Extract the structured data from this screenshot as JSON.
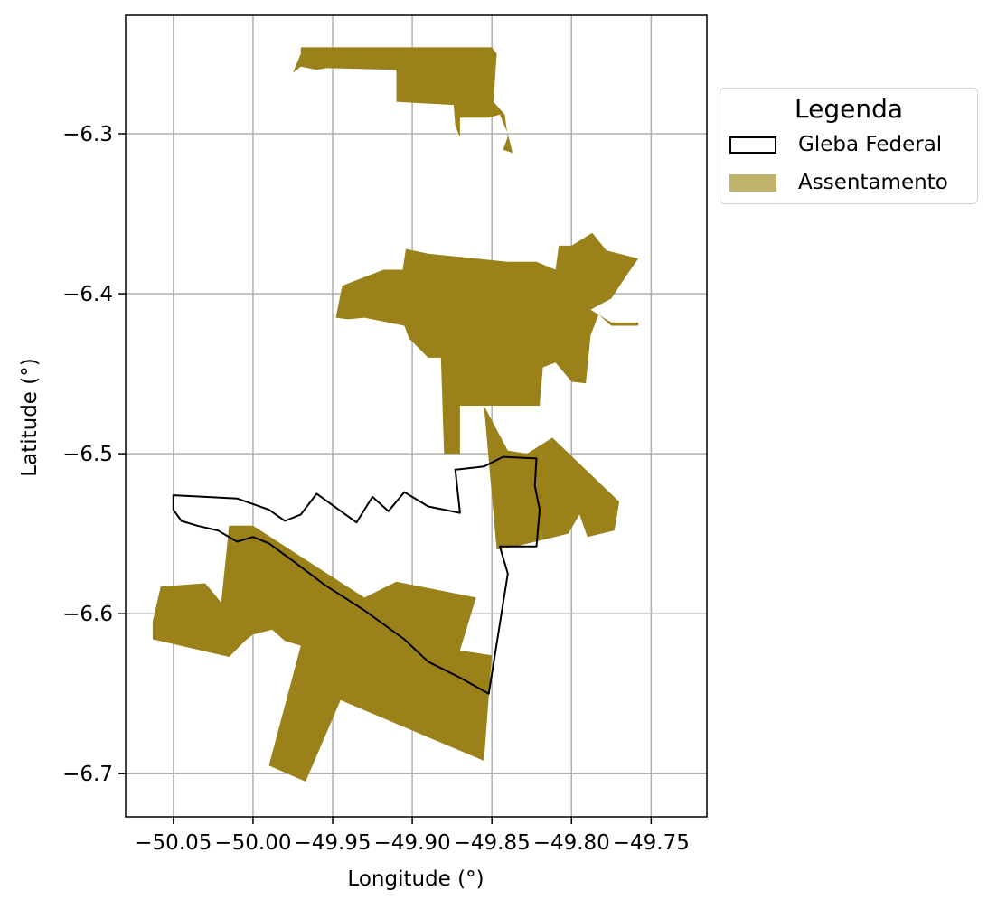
{
  "chart_data": {
    "type": "map",
    "xlabel": "Longitude (°)",
    "ylabel": "Latitude (°)",
    "xlim": [
      -50.08,
      -49.715
    ],
    "ylim": [
      -6.727,
      -6.226
    ],
    "x_ticks": [
      -50.05,
      -50.0,
      -49.95,
      -49.9,
      -49.85,
      -49.8,
      -49.75
    ],
    "x_tick_labels": [
      "−50.05",
      "−50.00",
      "−49.95",
      "−49.90",
      "−49.85",
      "−49.80",
      "−49.75"
    ],
    "y_ticks": [
      -6.3,
      -6.4,
      -6.5,
      -6.6,
      -6.7
    ],
    "y_tick_labels": [
      "−6.3",
      "−6.4",
      "−6.5",
      "−6.6",
      "−6.7"
    ],
    "grid": true,
    "legend": {
      "title": "Legenda",
      "placement": "outside-right-top",
      "entries": [
        {
          "label": "Gleba Federal",
          "style": "outline",
          "color": "#000000"
        },
        {
          "label": "Assentamento",
          "style": "fill",
          "color": "#9a8119"
        }
      ]
    },
    "colors": {
      "assentamento": "#9a8119",
      "gleba": "#000000",
      "grid": "#b0b0b0"
    },
    "assentamento_polygons": [
      [
        [
          -49.97,
          -6.246
        ],
        [
          -49.85,
          -6.246
        ],
        [
          -49.847,
          -6.25
        ],
        [
          -49.849,
          -6.28
        ],
        [
          -49.842,
          -6.288
        ],
        [
          -49.84,
          -6.302
        ],
        [
          -49.843,
          -6.31
        ],
        [
          -49.837,
          -6.312
        ],
        [
          -49.84,
          -6.3
        ],
        [
          -49.845,
          -6.288
        ],
        [
          -49.852,
          -6.29
        ],
        [
          -49.87,
          -6.29
        ],
        [
          -49.87,
          -6.302
        ],
        [
          -49.873,
          -6.295
        ],
        [
          -49.874,
          -6.282
        ],
        [
          -49.91,
          -6.28
        ],
        [
          -49.91,
          -6.26
        ],
        [
          -49.954,
          -6.259
        ],
        [
          -49.96,
          -6.26
        ],
        [
          -49.97,
          -6.258
        ],
        [
          -49.975,
          -6.262
        ],
        [
          -49.97,
          -6.25
        ]
      ],
      [
        [
          -49.918,
          -6.385
        ],
        [
          -49.906,
          -6.385
        ],
        [
          -49.904,
          -6.372
        ],
        [
          -49.89,
          -6.375
        ],
        [
          -49.84,
          -6.38
        ],
        [
          -49.822,
          -6.38
        ],
        [
          -49.81,
          -6.385
        ],
        [
          -49.808,
          -6.37
        ],
        [
          -49.8,
          -6.37
        ],
        [
          -49.787,
          -6.362
        ],
        [
          -49.778,
          -6.373
        ],
        [
          -49.766,
          -6.376
        ],
        [
          -49.758,
          -6.378
        ],
        [
          -49.765,
          -6.388
        ],
        [
          -49.775,
          -6.403
        ],
        [
          -49.788,
          -6.41
        ],
        [
          -49.775,
          -6.418
        ],
        [
          -49.758,
          -6.418
        ],
        [
          -49.758,
          -6.42
        ],
        [
          -49.775,
          -6.42
        ],
        [
          -49.783,
          -6.413
        ],
        [
          -49.788,
          -6.426
        ],
        [
          -49.791,
          -6.456
        ],
        [
          -49.8,
          -6.455
        ],
        [
          -49.81,
          -6.443
        ],
        [
          -49.818,
          -6.446
        ],
        [
          -49.82,
          -6.47
        ],
        [
          -49.845,
          -6.47
        ],
        [
          -49.87,
          -6.47
        ],
        [
          -49.87,
          -6.5
        ],
        [
          -49.88,
          -6.5
        ],
        [
          -49.882,
          -6.44
        ],
        [
          -49.89,
          -6.44
        ],
        [
          -49.902,
          -6.428
        ],
        [
          -49.905,
          -6.42
        ],
        [
          -49.93,
          -6.415
        ],
        [
          -49.94,
          -6.416
        ],
        [
          -49.948,
          -6.415
        ],
        [
          -49.944,
          -6.395
        ]
      ],
      [
        [
          -49.855,
          -6.47
        ],
        [
          -49.84,
          -6.498
        ],
        [
          -49.828,
          -6.5
        ],
        [
          -49.812,
          -6.49
        ],
        [
          -49.77,
          -6.53
        ],
        [
          -49.773,
          -6.548
        ],
        [
          -49.79,
          -6.552
        ],
        [
          -49.795,
          -6.538
        ],
        [
          -49.802,
          -6.55
        ],
        [
          -49.835,
          -6.558
        ],
        [
          -49.847,
          -6.56
        ]
      ],
      [
        [
          -50.058,
          -6.583
        ],
        [
          -50.03,
          -6.581
        ],
        [
          -50.02,
          -6.593
        ],
        [
          -50.015,
          -6.545
        ],
        [
          -50.0,
          -6.545
        ],
        [
          -49.93,
          -6.59
        ],
        [
          -49.91,
          -6.58
        ],
        [
          -49.86,
          -6.59
        ],
        [
          -49.87,
          -6.623
        ],
        [
          -49.85,
          -6.626
        ],
        [
          -49.855,
          -6.692
        ],
        [
          -49.945,
          -6.654
        ],
        [
          -49.967,
          -6.705
        ],
        [
          -49.99,
          -6.695
        ],
        [
          -49.97,
          -6.62
        ],
        [
          -49.98,
          -6.617
        ],
        [
          -49.988,
          -6.61
        ],
        [
          -50.0,
          -6.613
        ],
        [
          -50.005,
          -6.617
        ],
        [
          -50.015,
          -6.627
        ],
        [
          -50.063,
          -6.616
        ],
        [
          -50.063,
          -6.605
        ]
      ]
    ],
    "gleba_federal_outline": [
      [
        -50.05,
        -6.526
      ],
      [
        -50.03,
        -6.527
      ],
      [
        -50.01,
        -6.528
      ],
      [
        -49.99,
        -6.535
      ],
      [
        -49.98,
        -6.542
      ],
      [
        -49.97,
        -6.538
      ],
      [
        -49.96,
        -6.525
      ],
      [
        -49.935,
        -6.543
      ],
      [
        -49.925,
        -6.527
      ],
      [
        -49.915,
        -6.536
      ],
      [
        -49.905,
        -6.524
      ],
      [
        -49.89,
        -6.533
      ],
      [
        -49.87,
        -6.537
      ],
      [
        -49.873,
        -6.51
      ],
      [
        -49.855,
        -6.508
      ],
      [
        -49.843,
        -6.502
      ],
      [
        -49.822,
        -6.503
      ],
      [
        -49.823,
        -6.52
      ],
      [
        -49.82,
        -6.535
      ],
      [
        -49.822,
        -6.558
      ],
      [
        -49.845,
        -6.558
      ],
      [
        -49.84,
        -6.575
      ],
      [
        -49.852,
        -6.65
      ],
      [
        -49.87,
        -6.64
      ],
      [
        -49.89,
        -6.63
      ],
      [
        -49.905,
        -6.616
      ],
      [
        -49.93,
        -6.598
      ],
      [
        -49.955,
        -6.582
      ],
      [
        -49.975,
        -6.567
      ],
      [
        -49.99,
        -6.556
      ],
      [
        -50.0,
        -6.552
      ],
      [
        -50.01,
        -6.555
      ],
      [
        -50.022,
        -6.548
      ],
      [
        -50.035,
        -6.545
      ],
      [
        -50.045,
        -6.542
      ],
      [
        -50.05,
        -6.535
      ]
    ]
  }
}
